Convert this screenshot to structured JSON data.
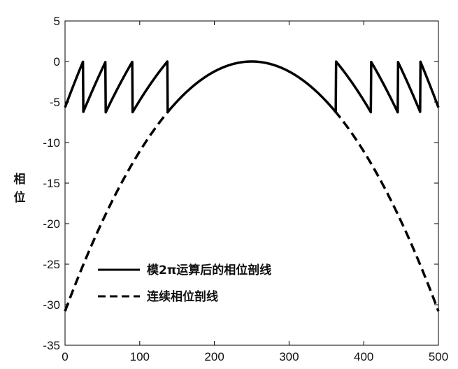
{
  "chart_data": {
    "type": "line",
    "title": "",
    "xlabel": "",
    "ylabel": "相位",
    "xlim": [
      0,
      500
    ],
    "ylim": [
      -35,
      5
    ],
    "xticks": [
      "0",
      "100",
      "200",
      "300",
      "400",
      "500"
    ],
    "yticks": [
      "5",
      "0",
      "-5",
      "-10",
      "-15",
      "-20",
      "-25",
      "-30",
      "-35"
    ],
    "grid": false,
    "legend_position": "lower-left",
    "curve": {
      "peak_x": 250,
      "peak_y": 0,
      "end_y": -30.8
    },
    "series": [
      {
        "name": "模2π运算后的相位剖线",
        "style": "solid",
        "wrap_threshold": -6.2832,
        "wrap_points_x": [
          24,
          54,
          89,
          139,
          361,
          411,
          446,
          476
        ]
      },
      {
        "name": "连续相位剖线",
        "style": "dashed",
        "visible_x_ranges": [
          [
            0,
            139
          ],
          [
            361,
            500
          ]
        ]
      }
    ]
  }
}
